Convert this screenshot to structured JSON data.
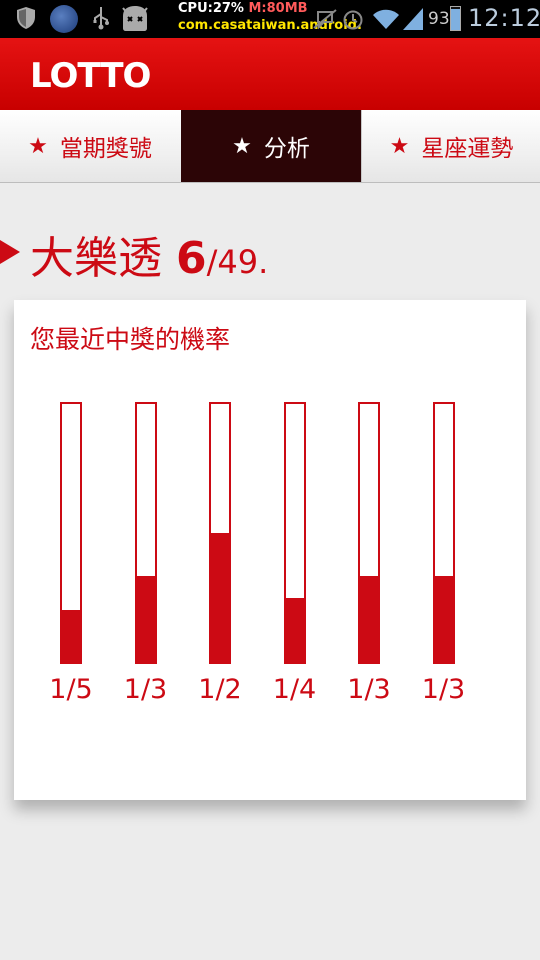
{
  "status_bar": {
    "cpu_label": "CPU:27%",
    "mem_label": "M:80MB",
    "package": "com.casataiwan.android.",
    "battery_percent": "93",
    "battery_level": 0.93,
    "time": "12:12"
  },
  "app": {
    "title": "LOTTO",
    "accent_color": "#cc0a14",
    "selected_tab_color": "#2c0506"
  },
  "tabs": [
    {
      "icon": "star-icon",
      "label": "當期獎號",
      "selected": false
    },
    {
      "icon": "star-icon",
      "label": "分析",
      "selected": true
    },
    {
      "icon": "star-icon",
      "label": "星座運勢",
      "selected": false
    }
  ],
  "section": {
    "name": "大樂透",
    "pick": "6",
    "pool": "/49."
  },
  "card": {
    "title": "您最近中獎的機率"
  },
  "chart_data": {
    "type": "bar",
    "categories": [
      "1/5",
      "1/3",
      "1/2",
      "1/4",
      "1/3",
      "1/3"
    ],
    "values": [
      0.2,
      0.333,
      0.5,
      0.25,
      0.333,
      0.333
    ],
    "ylim": [
      0,
      1
    ],
    "title": "您最近中獎的機率"
  }
}
